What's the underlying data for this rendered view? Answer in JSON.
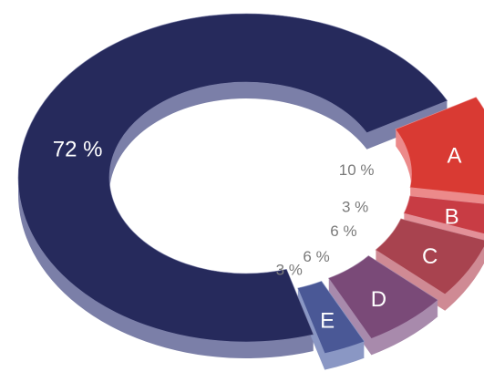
{
  "chart_data": {
    "type": "donut3d",
    "categories": [
      null,
      "A",
      "B",
      "C",
      "D",
      "E"
    ],
    "values": [
      72,
      10,
      3,
      6,
      6,
      3
    ],
    "value_labels": [
      "72  %",
      "10 %",
      "3 %",
      "6 %",
      "6 %",
      "3 %"
    ],
    "colors": [
      "#262a5c",
      "#d93a33",
      "#c83c44",
      "#a8434f",
      "#7a4a78",
      "#4a5896"
    ],
    "side_colors": [
      "#7b7fa8",
      "#ec8a8a",
      "#e39098",
      "#cf8a94",
      "#a88aac",
      "#8a97c4"
    ]
  }
}
